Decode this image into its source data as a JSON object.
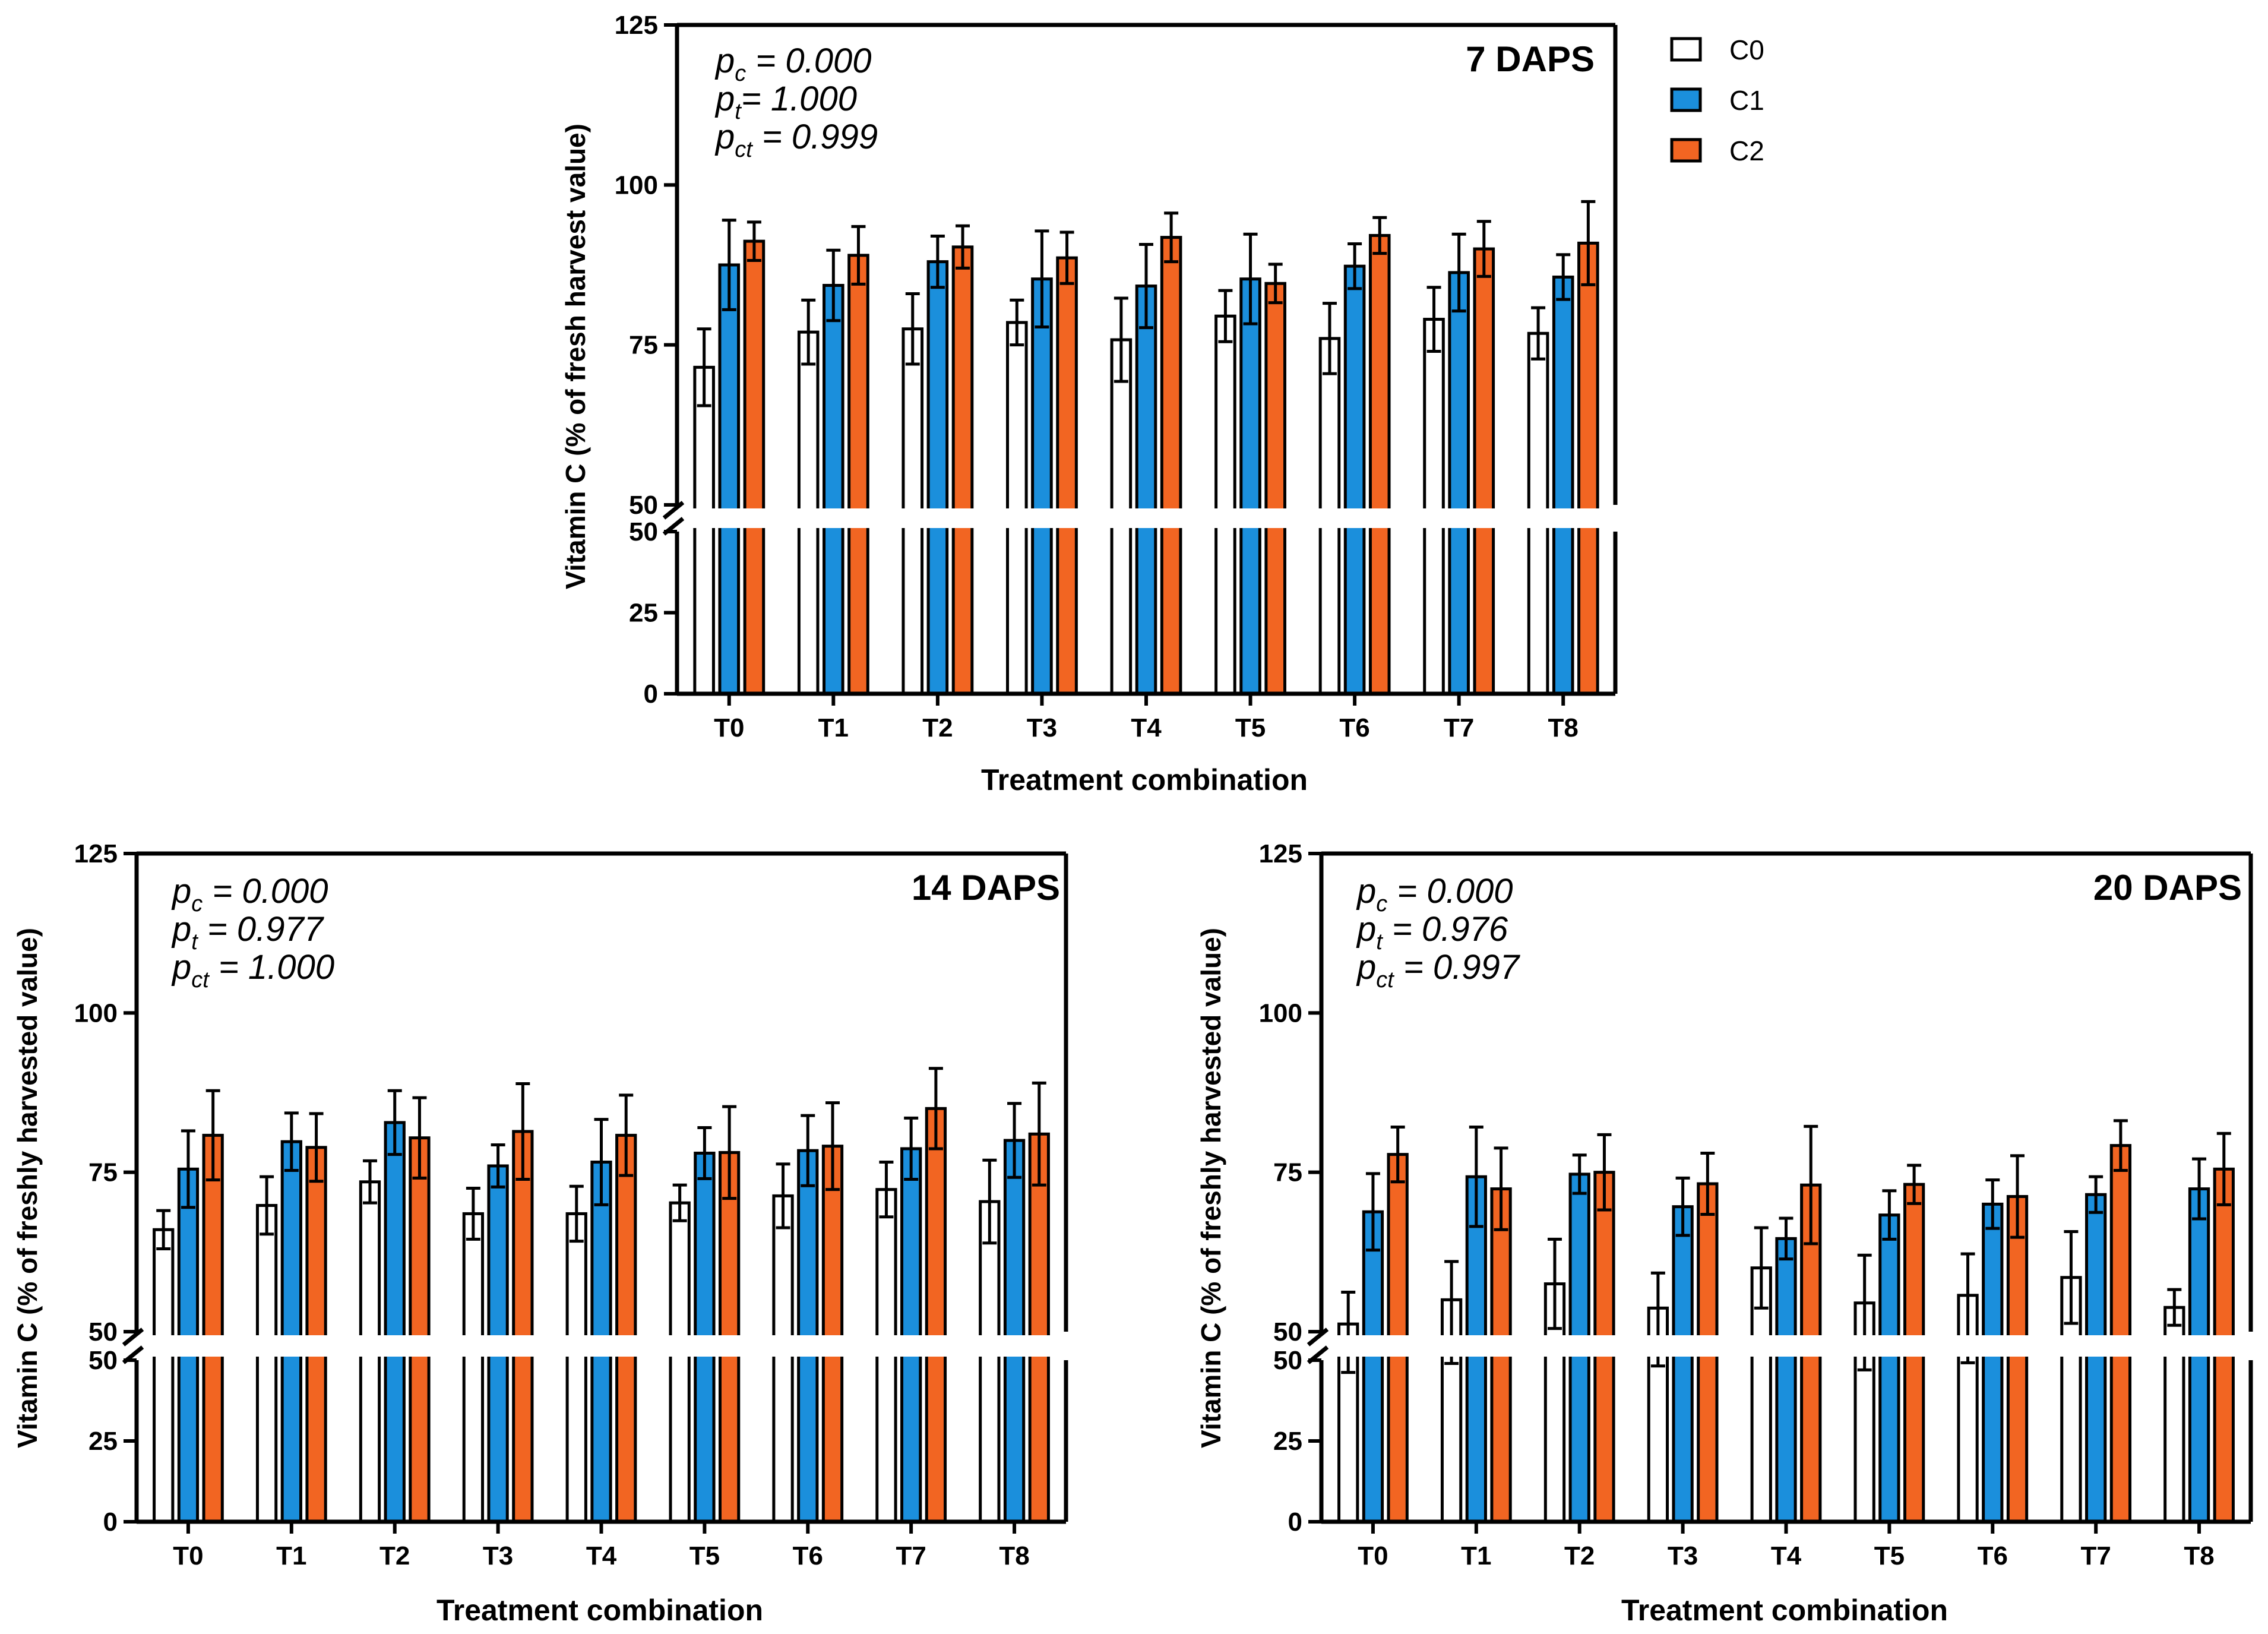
{
  "colors": {
    "C0": "#ffffff",
    "C1": "#1b8fdc",
    "C2": "#f26522",
    "axis": "#000000"
  },
  "legend": {
    "items": [
      {
        "key": "C0",
        "label": "C0"
      },
      {
        "key": "C1",
        "label": "C1"
      },
      {
        "key": "C2",
        "label": "C2"
      }
    ]
  },
  "chart_data": [
    {
      "type": "bar",
      "title": "7 DAPS",
      "xlabel": "Treatment combination",
      "ylabel": "Vitamin C (% of fresh harvest value)",
      "ylim": [
        0,
        125
      ],
      "axis_break": [
        50,
        50
      ],
      "yticks": [
        "0",
        "25",
        "50",
        "50",
        "75",
        "100",
        "125"
      ],
      "categories": [
        "T0",
        "T1",
        "T2",
        "T3",
        "T4",
        "T5",
        "T6",
        "T7",
        "T8"
      ],
      "pvalues": [
        {
          "label": "p",
          "sub": "c",
          "value": " = 0.000"
        },
        {
          "label": "p",
          "sub": "t",
          "value": "= 1.000"
        },
        {
          "label": "p",
          "sub": "ct",
          "value": " = 0.999"
        }
      ],
      "series": [
        {
          "name": "C0",
          "values": [
            71.5,
            77.0,
            77.5,
            78.5,
            75.8,
            79.5,
            76.0,
            79.0,
            76.8
          ],
          "errors": [
            6.0,
            5.0,
            5.5,
            3.5,
            6.5,
            4.0,
            5.5,
            5.0,
            4.0
          ]
        },
        {
          "name": "C1",
          "values": [
            87.5,
            84.3,
            88.0,
            85.3,
            84.2,
            85.3,
            87.3,
            86.3,
            85.6
          ],
          "errors": [
            7.0,
            5.5,
            4.0,
            7.5,
            6.5,
            7.0,
            3.5,
            6.0,
            3.5
          ]
        },
        {
          "name": "C2",
          "values": [
            91.2,
            89.0,
            90.3,
            88.6,
            91.8,
            84.6,
            92.1,
            90.0,
            90.9
          ],
          "errors": [
            3.0,
            4.5,
            3.3,
            4.0,
            3.8,
            3.0,
            2.8,
            4.3,
            6.5
          ]
        }
      ]
    },
    {
      "type": "bar",
      "title": "14 DAPS",
      "xlabel": "Treatment combination",
      "ylabel": "Vitamin C (% of freshly harvested value)",
      "ylim": [
        0,
        125
      ],
      "axis_break": [
        50,
        50
      ],
      "yticks": [
        "0",
        "25",
        "50",
        "50",
        "75",
        "100",
        "125"
      ],
      "categories": [
        "T0",
        "T1",
        "T2",
        "T3",
        "T4",
        "T5",
        "T6",
        "T7",
        "T8"
      ],
      "pvalues": [
        {
          "label": "p",
          "sub": "c",
          "value": " = 0.000"
        },
        {
          "label": "p",
          "sub": "t",
          "value": " = 0.977"
        },
        {
          "label": "p",
          "sub": "ct",
          "value": " = 1.000"
        }
      ],
      "series": [
        {
          "name": "C0",
          "values": [
            66.0,
            69.8,
            73.5,
            68.5,
            68.5,
            70.2,
            71.3,
            72.3,
            70.4
          ],
          "errors": [
            3.0,
            4.5,
            3.3,
            4.0,
            4.3,
            2.8,
            5.0,
            4.3,
            6.5
          ]
        },
        {
          "name": "C1",
          "values": [
            75.5,
            79.8,
            82.8,
            76.0,
            76.6,
            78.0,
            78.4,
            78.7,
            80.0
          ],
          "errors": [
            6.0,
            4.5,
            5.0,
            3.3,
            6.7,
            4.0,
            5.5,
            4.8,
            5.8
          ]
        },
        {
          "name": "C2",
          "values": [
            80.8,
            78.9,
            80.4,
            81.4,
            80.8,
            78.1,
            79.1,
            85.0,
            81.0
          ],
          "errors": [
            7.0,
            5.3,
            6.3,
            7.5,
            6.3,
            7.2,
            6.8,
            6.3,
            8.0
          ]
        }
      ]
    },
    {
      "type": "bar",
      "title": "20 DAPS",
      "xlabel": "Treatment combination",
      "ylabel": "Vitamin C (% of freshly harvested value)",
      "ylim": [
        0,
        125
      ],
      "axis_break": [
        50,
        50
      ],
      "yticks": [
        "0",
        "25",
        "50",
        "50",
        "75",
        "100",
        "125"
      ],
      "categories": [
        "T0",
        "T1",
        "T2",
        "T3",
        "T4",
        "T5",
        "T6",
        "T7",
        "T8"
      ],
      "pvalues": [
        {
          "label": "p",
          "sub": "c",
          "value": " = 0.000"
        },
        {
          "label": "p",
          "sub": "t",
          "value": " = 0.976"
        },
        {
          "label": "p",
          "sub": "ct",
          "value": " = 0.997"
        }
      ],
      "series": [
        {
          "name": "C0",
          "values": [
            51.2,
            55.0,
            57.5,
            53.7,
            60.0,
            54.5,
            55.7,
            58.5,
            53.8
          ],
          "errors": [
            5.0,
            6.0,
            7.0,
            5.5,
            6.3,
            7.5,
            6.5,
            7.2,
            2.8
          ]
        },
        {
          "name": "C1",
          "values": [
            68.8,
            74.3,
            74.7,
            69.6,
            64.6,
            68.3,
            70.0,
            71.5,
            72.4
          ],
          "errors": [
            6.0,
            7.8,
            3.0,
            4.5,
            3.2,
            3.8,
            3.8,
            2.8,
            4.7
          ]
        },
        {
          "name": "C2",
          "values": [
            77.8,
            72.4,
            75.0,
            73.2,
            73.0,
            73.1,
            71.2,
            79.2,
            75.5
          ],
          "errors": [
            4.3,
            6.4,
            5.9,
            4.8,
            9.2,
            3.0,
            6.4,
            3.9,
            5.6
          ]
        }
      ]
    }
  ]
}
